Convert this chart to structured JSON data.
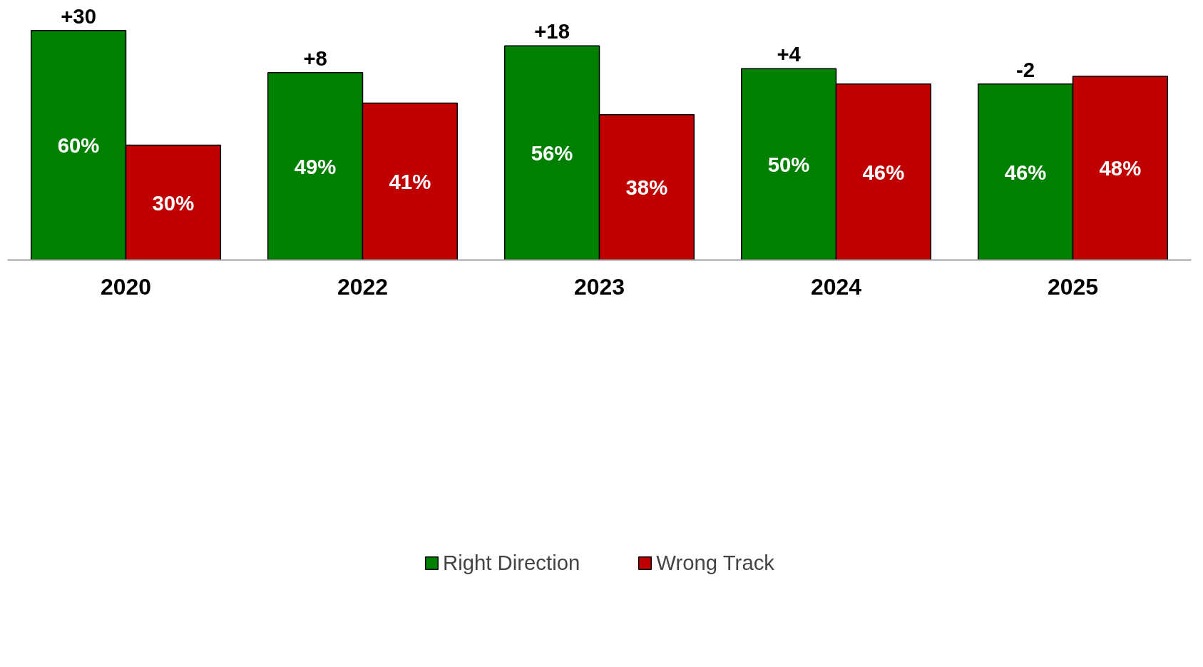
{
  "chart_data": {
    "type": "bar",
    "categories": [
      "2020",
      "2022",
      "2023",
      "2024",
      "2025"
    ],
    "series": [
      {
        "name": "Right Direction",
        "color": "#008000",
        "values": [
          60,
          49,
          56,
          50,
          46
        ],
        "value_labels": [
          "60%",
          "49%",
          "56%",
          "50%",
          "46%"
        ]
      },
      {
        "name": "Wrong Track",
        "color": "#c00000",
        "values": [
          30,
          41,
          38,
          46,
          48
        ],
        "value_labels": [
          "30%",
          "41%",
          "38%",
          "46%",
          "48%"
        ]
      }
    ],
    "annotations": [
      {
        "text": "+30",
        "x": "2020",
        "y": 60
      },
      {
        "text": "+8",
        "x": "2022",
        "y": 49
      },
      {
        "text": "+18",
        "x": "2023",
        "y": 56
      },
      {
        "text": "+4",
        "x": "2024",
        "y": 50
      },
      {
        "text": "-2",
        "x": "2025",
        "y": 46
      }
    ],
    "grid": false,
    "legend": "bottom"
  }
}
